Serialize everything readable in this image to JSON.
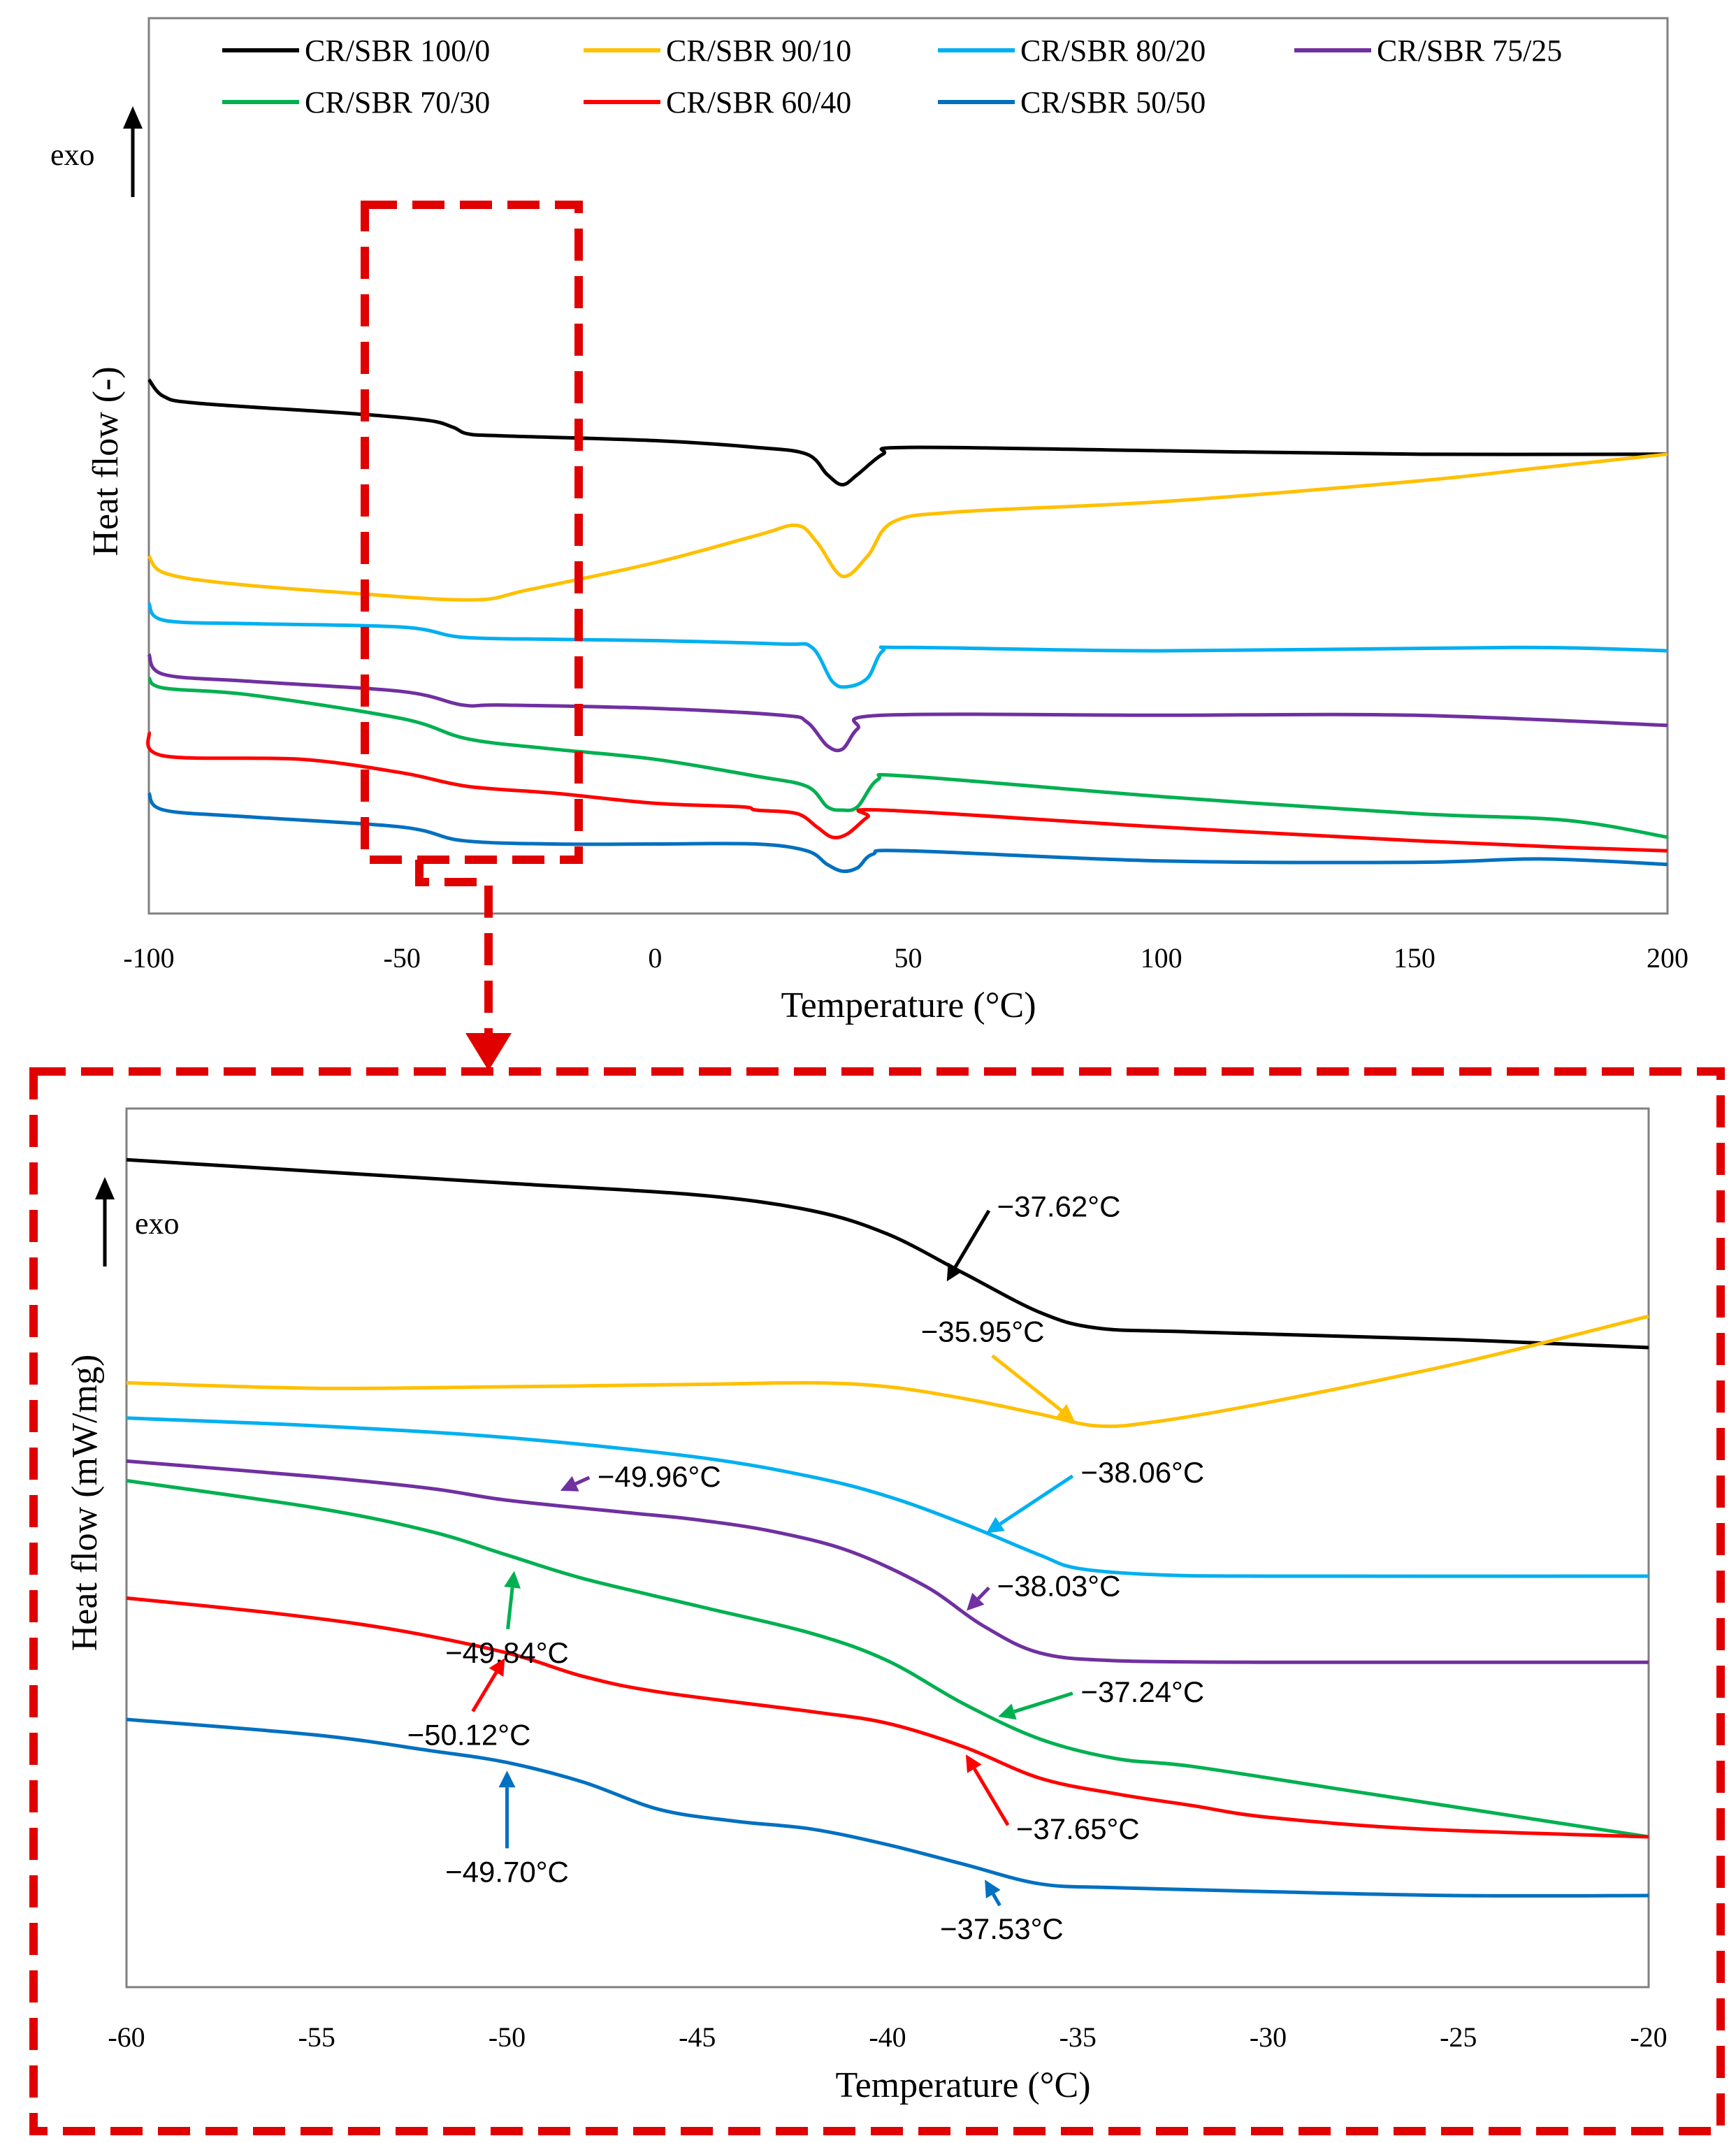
{
  "colors": {
    "CR/SBR 100/0": "#000000",
    "CR/SBR 90/10": "#FFC000",
    "CR/SBR 80/20": "#00B0F0",
    "CR/SBR 75/25": "#7030A0",
    "CR/SBR 70/30": "#00B050",
    "CR/SBR 60/40": "#FF0000",
    "CR/SBR 50/50": "#0070C0",
    "callout": "#E00000"
  },
  "chart_data": [
    {
      "type": "line",
      "title": "",
      "xlabel": "Temperature (°C)",
      "ylabel": "Heat flow (-)",
      "exo_label": "exo",
      "xlim": [
        -100,
        200
      ],
      "ylim": [
        0,
        100
      ],
      "x_ticks": [
        "-100",
        "-50",
        "0",
        "50",
        "100",
        "150",
        "200"
      ],
      "legend": [
        "CR/SBR 100/0",
        "CR/SBR 90/10",
        "CR/SBR 80/20",
        "CR/SBR 75/25",
        "CR/SBR 70/30",
        "CR/SBR 60/40",
        "CR/SBR 50/50"
      ],
      "series": [
        {
          "name": "CR/SBR 100/0",
          "points": [
            [
              -100,
              77
            ],
            [
              -97,
              74.5
            ],
            [
              -90,
              73.5
            ],
            [
              -60,
              72
            ],
            [
              -45,
              71
            ],
            [
              -40,
              70
            ],
            [
              -37,
              69
            ],
            [
              -30,
              68.7
            ],
            [
              0,
              68
            ],
            [
              20,
              67
            ],
            [
              30,
              66
            ],
            [
              34,
              63
            ],
            [
              37,
              61.5
            ],
            [
              40,
              63
            ],
            [
              45,
              66
            ],
            [
              50,
              67
            ],
            [
              100,
              66.5
            ],
            [
              150,
              66
            ],
            [
              200,
              66
            ]
          ]
        },
        {
          "name": "CR/SBR 90/10",
          "points": [
            [
              -100,
              51
            ],
            [
              -97,
              48.5
            ],
            [
              -85,
              47
            ],
            [
              -60,
              45.5
            ],
            [
              -36,
              44.5
            ],
            [
              -25,
              46
            ],
            [
              0,
              50
            ],
            [
              20,
              54
            ],
            [
              28,
              55.5
            ],
            [
              32,
              53
            ],
            [
              37,
              48
            ],
            [
              42,
              51
            ],
            [
              47,
              56
            ],
            [
              60,
              57.5
            ],
            [
              100,
              59
            ],
            [
              150,
              62
            ],
            [
              175,
              64
            ],
            [
              200,
              66
            ]
          ]
        },
        {
          "name": "CR/SBR 80/20",
          "points": [
            [
              -100,
              44
            ],
            [
              -97,
              41.5
            ],
            [
              -80,
              41
            ],
            [
              -50,
              40.5
            ],
            [
              -38,
              39
            ],
            [
              -20,
              38.7
            ],
            [
              0,
              38.5
            ],
            [
              25,
              38
            ],
            [
              31,
              37.5
            ],
            [
              35,
              32.5
            ],
            [
              38,
              31.7
            ],
            [
              42,
              33
            ],
            [
              45,
              37
            ],
            [
              50,
              37.5
            ],
            [
              100,
              37
            ],
            [
              170,
              37.5
            ],
            [
              200,
              37
            ]
          ]
        },
        {
          "name": "CR/SBR 75/25",
          "points": [
            [
              -100,
              36.5
            ],
            [
              -97,
              33.5
            ],
            [
              -80,
              32.5
            ],
            [
              -50,
              31
            ],
            [
              -38,
              29
            ],
            [
              -30,
              29
            ],
            [
              0,
              28.5
            ],
            [
              25,
              27.5
            ],
            [
              30,
              26.5
            ],
            [
              34,
              23
            ],
            [
              37,
              22.5
            ],
            [
              40,
              25.5
            ],
            [
              45,
              27.5
            ],
            [
              100,
              27.5
            ],
            [
              150,
              27.5
            ],
            [
              200,
              26
            ]
          ]
        },
        {
          "name": "CR/SBR 70/30",
          "points": [
            [
              -100,
              33
            ],
            [
              -97,
              31.5
            ],
            [
              -80,
              30.5
            ],
            [
              -50,
              27
            ],
            [
              -37,
              24
            ],
            [
              -20,
              22.5
            ],
            [
              0,
              21
            ],
            [
              20,
              18.5
            ],
            [
              30,
              17
            ],
            [
              34,
              14
            ],
            [
              37,
              13.5
            ],
            [
              40,
              14
            ],
            [
              44,
              18
            ],
            [
              50,
              18.5
            ],
            [
              100,
              15.5
            ],
            [
              150,
              13
            ],
            [
              180,
              12
            ],
            [
              200,
              9.5
            ]
          ]
        },
        {
          "name": "CR/SBR 60/40",
          "points": [
            [
              -100,
              25
            ],
            [
              -97,
              21.5
            ],
            [
              -70,
              21
            ],
            [
              -50,
              19
            ],
            [
              -37,
              17
            ],
            [
              -20,
              16
            ],
            [
              0,
              14.5
            ],
            [
              17,
              14
            ],
            [
              20,
              13.5
            ],
            [
              28,
              13
            ],
            [
              32,
              11
            ],
            [
              35,
              9.5
            ],
            [
              38,
              10
            ],
            [
              42,
              12.5
            ],
            [
              45,
              13.5
            ],
            [
              100,
              11
            ],
            [
              150,
              9
            ],
            [
              180,
              8
            ],
            [
              200,
              7.5
            ]
          ]
        },
        {
          "name": "CR/SBR 50/50",
          "points": [
            [
              -100,
              16
            ],
            [
              -97,
              13.5
            ],
            [
              -80,
              12.5
            ],
            [
              -50,
              11
            ],
            [
              -38,
              9
            ],
            [
              -20,
              8.5
            ],
            [
              0,
              8.5
            ],
            [
              20,
              8.5
            ],
            [
              30,
              7.5
            ],
            [
              34,
              5.5
            ],
            [
              37,
              4.5
            ],
            [
              40,
              5
            ],
            [
              43,
              7
            ],
            [
              50,
              7.5
            ],
            [
              100,
              6
            ],
            [
              150,
              5.8
            ],
            [
              175,
              6.3
            ],
            [
              200,
              5.5
            ]
          ]
        }
      ]
    },
    {
      "type": "line",
      "title": "",
      "xlabel": "Temperature (°C)",
      "ylabel": "Heat flow (mW/mg)",
      "exo_label": "exo",
      "xlim": [
        -60,
        -20
      ],
      "ylim": [
        0,
        100
      ],
      "x_ticks": [
        "-60",
        "-55",
        "-50",
        "-45",
        "-40",
        "-35",
        "-30",
        "-25",
        "-20"
      ],
      "series": [
        {
          "name": "CR/SBR 100/0",
          "points": [
            [
              -60,
              96.5
            ],
            [
              -55,
              95
            ],
            [
              -50,
              93.5
            ],
            [
              -45,
              92
            ],
            [
              -42,
              90
            ],
            [
              -40,
              87
            ],
            [
              -38,
              82
            ],
            [
              -36,
              77
            ],
            [
              -34.5,
              75
            ],
            [
              -32,
              74.5
            ],
            [
              -25,
              73.5
            ],
            [
              -20,
              72.5
            ]
          ]
        },
        {
          "name": "CR/SBR 90/10",
          "points": [
            [
              -60,
              68
            ],
            [
              -55,
              67.3
            ],
            [
              -50,
              67.5
            ],
            [
              -45,
              67.8
            ],
            [
              -42,
              68
            ],
            [
              -40,
              67.5
            ],
            [
              -38,
              66
            ],
            [
              -36,
              64
            ],
            [
              -34.5,
              62.5
            ],
            [
              -33,
              63
            ],
            [
              -30,
              65.5
            ],
            [
              -25,
              70.5
            ],
            [
              -20,
              76.5
            ]
          ]
        },
        {
          "name": "CR/SBR 80/20",
          "points": [
            [
              -60,
              63.5
            ],
            [
              -55,
              62.5
            ],
            [
              -50,
              61
            ],
            [
              -45,
              58.5
            ],
            [
              -42,
              56
            ],
            [
              -40,
              53.5
            ],
            [
              -38,
              50
            ],
            [
              -36,
              46
            ],
            [
              -35,
              44.3
            ],
            [
              -33,
              43.5
            ],
            [
              -30,
              43.3
            ],
            [
              -20,
              43.3
            ]
          ]
        },
        {
          "name": "CR/SBR 75/25",
          "points": [
            [
              -60,
              58
            ],
            [
              -55,
              56
            ],
            [
              -52,
              54.5
            ],
            [
              -50,
              53
            ],
            [
              -47,
              51.5
            ],
            [
              -45,
              50.5
            ],
            [
              -43,
              49
            ],
            [
              -41,
              46.5
            ],
            [
              -39,
              42
            ],
            [
              -37.5,
              37
            ],
            [
              -36,
              33.5
            ],
            [
              -34,
              32.5
            ],
            [
              -30,
              32.3
            ],
            [
              -25,
              32.3
            ],
            [
              -20,
              32.3
            ]
          ]
        },
        {
          "name": "CR/SBR 70/30",
          "points": [
            [
              -60,
              55.5
            ],
            [
              -55,
              52
            ],
            [
              -52,
              49
            ],
            [
              -50,
              46
            ],
            [
              -48,
              43
            ],
            [
              -45,
              39.5
            ],
            [
              -42,
              36
            ],
            [
              -40,
              32.5
            ],
            [
              -38,
              27
            ],
            [
              -36,
              22.5
            ],
            [
              -34,
              20
            ],
            [
              -32,
              19
            ],
            [
              -28,
              16
            ],
            [
              -24,
              13
            ],
            [
              -20,
              10
            ]
          ]
        },
        {
          "name": "CR/SBR 60/40",
          "points": [
            [
              -60,
              40.5
            ],
            [
              -56,
              38.5
            ],
            [
              -53,
              36.5
            ],
            [
              -50,
              33.5
            ],
            [
              -48,
              30.5
            ],
            [
              -46,
              28.5
            ],
            [
              -42,
              26
            ],
            [
              -40,
              24.5
            ],
            [
              -38,
              21.5
            ],
            [
              -36,
              17.5
            ],
            [
              -34,
              15.5
            ],
            [
              -32,
              14
            ],
            [
              -30,
              12.5
            ],
            [
              -26,
              11
            ],
            [
              -20,
              10
            ]
          ]
        },
        {
          "name": "CR/SBR 50/50",
          "points": [
            [
              -60,
              25
            ],
            [
              -55,
              23
            ],
            [
              -52,
              21
            ],
            [
              -50,
              19.5
            ],
            [
              -48,
              17
            ],
            [
              -46,
              13.5
            ],
            [
              -44,
              12
            ],
            [
              -42,
              11
            ],
            [
              -40,
              9
            ],
            [
              -38,
              6.5
            ],
            [
              -36,
              4
            ],
            [
              -34,
              3.5
            ],
            [
              -30,
              3
            ],
            [
              -25,
              2.5
            ],
            [
              -20,
              2.5
            ]
          ]
        }
      ],
      "annotations": [
        {
          "text": "−37.62°C",
          "series": "CR/SBR 100/0",
          "x": -38.5,
          "y": 80.5,
          "tx": -35.5,
          "ty": 90.5
        },
        {
          "text": "−35.95°C",
          "series": "CR/SBR 90/10",
          "x": -35.0,
          "y": 62.8,
          "tx": -37.5,
          "ty": 74.5
        },
        {
          "text": "−38.06°C",
          "series": "CR/SBR 80/20",
          "x": -37.5,
          "y": 48.5,
          "tx": -33.3,
          "ty": 56.5
        },
        {
          "text": "−49.96°C",
          "series": "CR/SBR 75/25",
          "x": -48.7,
          "y": 54.0,
          "tx": -46.0,
          "ty": 56.0
        },
        {
          "text": "−38.03°C",
          "series": "CR/SBR 75/25",
          "x": -38.0,
          "y": 38.5,
          "tx": -35.5,
          "ty": 42.0
        },
        {
          "text": "−49,84°C",
          "series": "CR/SBR 70/30",
          "x": -49.8,
          "y": 44.5,
          "tx": -50.0,
          "ty": 33.5
        },
        {
          "text": "−37.24°C",
          "series": "CR/SBR 70/30",
          "x": -37.2,
          "y": 25.2,
          "tx": -33.3,
          "ty": 28.5
        },
        {
          "text": "−50.12°C",
          "series": "CR/SBR 60/40",
          "x": -50.0,
          "y": 33.3,
          "tx": -51.0,
          "ty": 23.0
        },
        {
          "text": "−37.65°C",
          "series": "CR/SBR 60/40",
          "x": -38.0,
          "y": 21.0,
          "tx": -35.0,
          "ty": 11.0
        },
        {
          "text": "−49.70°C",
          "series": "CR/SBR 50/50",
          "x": -50.0,
          "y": 19.0,
          "tx": -50.0,
          "ty": 5.5
        },
        {
          "text": "−37.53°C",
          "series": "CR/SBR 50/50",
          "x": -37.5,
          "y": 5.0,
          "tx": -37.0,
          "ty": -1.8
        }
      ]
    }
  ]
}
